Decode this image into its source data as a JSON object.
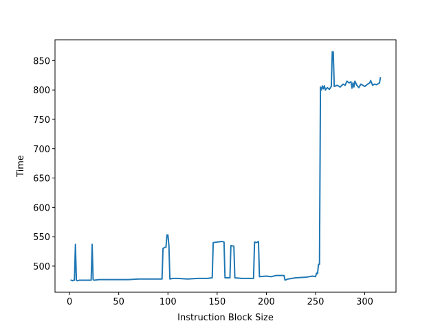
{
  "chart_data": {
    "type": "line",
    "xlabel": "Instruction Block Size",
    "ylabel": "Time",
    "series": [
      {
        "color": "#1f77b4",
        "x": [
          1,
          2,
          3,
          4,
          5,
          6,
          7,
          8,
          10,
          15,
          20,
          22,
          23,
          24,
          25,
          30,
          40,
          50,
          60,
          70,
          80,
          90,
          94,
          95,
          97,
          98,
          99,
          100,
          101,
          102,
          105,
          110,
          120,
          130,
          140,
          145,
          146,
          150,
          155,
          157,
          158,
          163,
          164,
          167,
          168,
          175,
          187,
          188,
          190,
          192,
          193,
          200,
          205,
          210,
          218,
          219,
          222,
          230,
          240,
          247,
          250,
          251,
          252,
          253,
          254,
          255,
          256,
          257,
          258,
          259,
          260,
          262,
          264,
          266,
          267,
          268,
          269,
          272,
          275,
          278,
          280,
          282,
          284,
          286,
          287,
          288,
          289,
          290,
          292,
          294,
          296,
          298,
          300,
          303,
          305,
          306,
          308,
          310,
          312,
          315,
          316
        ],
        "values": [
          476,
          476,
          475,
          476,
          476,
          537,
          476,
          475,
          476,
          476,
          476,
          476,
          537,
          477,
          476,
          477,
          477,
          477,
          477,
          478,
          478,
          478,
          478,
          530,
          532,
          532,
          553,
          553,
          535,
          478,
          479,
          479,
          478,
          479,
          479,
          480,
          540,
          541,
          542,
          541,
          480,
          480,
          535,
          534,
          480,
          479,
          479,
          541,
          540,
          542,
          482,
          483,
          482,
          484,
          484,
          476,
          478,
          480,
          481,
          483,
          482,
          488,
          487,
          503,
          503,
          805,
          800,
          807,
          802,
          807,
          800,
          804,
          801,
          806,
          865,
          865,
          806,
          808,
          805,
          810,
          808,
          815,
          812,
          814,
          803,
          812,
          805,
          815,
          808,
          804,
          810,
          808,
          806,
          810,
          812,
          816,
          808,
          810,
          809,
          812,
          822
        ]
      }
    ],
    "xlim": [
      -14.75,
      331.75
    ],
    "ylim": [
      455.5,
      885.5
    ],
    "xticks": [
      0,
      50,
      100,
      150,
      200,
      250,
      300
    ],
    "yticks": [
      500,
      550,
      600,
      650,
      700,
      750,
      800,
      850
    ]
  }
}
